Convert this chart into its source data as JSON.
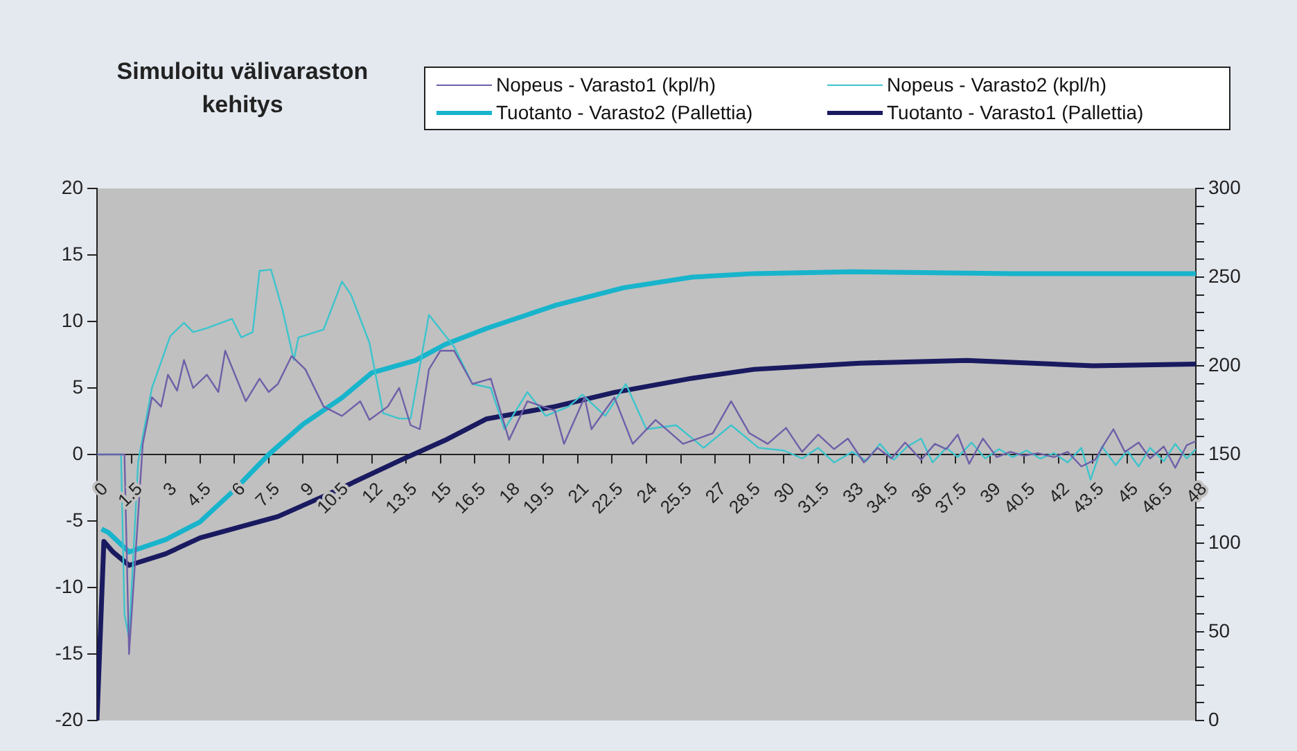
{
  "chart_data": {
    "type": "line",
    "title": "Simuloitu välivaraston kehitys",
    "legend": "top",
    "marker": "none",
    "line_style": "solid",
    "grid": false,
    "xlim": [
      0,
      48
    ],
    "xticks": [
      0,
      1.5,
      3,
      4.5,
      6,
      7.5,
      9,
      10.5,
      12,
      13.5,
      15,
      16.5,
      18,
      19.5,
      21,
      22.5,
      24,
      25.5,
      27,
      28.5,
      30,
      31.5,
      33,
      34.5,
      36,
      37.5,
      39,
      40.5,
      42,
      43.5,
      45,
      46.5,
      48
    ],
    "ylim": [
      -20,
      20
    ],
    "yticks": [
      -20,
      -15,
      -10,
      -5,
      0,
      5,
      10,
      15,
      20
    ],
    "y2lim": [
      0,
      300
    ],
    "y2ticks": [
      0,
      {
        "value": 10,
        "label": null
      },
      {
        "value": 20,
        "label": null
      },
      {
        "value": 30,
        "label": null
      },
      {
        "value": 40,
        "label": null
      },
      50,
      {
        "value": 60,
        "label": null
      },
      {
        "value": 70,
        "label": null
      },
      {
        "value": 80,
        "label": null
      },
      {
        "value": 90,
        "label": null
      },
      100,
      {
        "value": 110,
        "label": null
      },
      {
        "value": 120,
        "label": null
      },
      {
        "value": 130,
        "label": null
      },
      {
        "value": 140,
        "label": null
      },
      150,
      {
        "value": 160,
        "label": null
      },
      {
        "value": 170,
        "label": null
      },
      {
        "value": 180,
        "label": null
      },
      {
        "value": 190,
        "label": null
      },
      200,
      {
        "value": 210,
        "label": null
      },
      {
        "value": 220,
        "label": null
      },
      {
        "value": 230,
        "label": null
      },
      {
        "value": 240,
        "label": null
      },
      250,
      {
        "value": 260,
        "label": null
      },
      {
        "value": 270,
        "label": null
      },
      {
        "value": 280,
        "label": null
      },
      {
        "value": 290,
        "label": null
      },
      300
    ],
    "series": [
      {
        "name": "Nopeus - Varasto1 (kpl/h)",
        "color": "#6f5fa8",
        "x": [
          0,
          1.2,
          1.4,
          2.0,
          2.4,
          2.8,
          3.1,
          3.5,
          3.8,
          4.2,
          4.8,
          5.3,
          5.6,
          6.5,
          7.1,
          7.5,
          7.9,
          8.5,
          9.1,
          9.9,
          10.7,
          11.5,
          11.9,
          12.7,
          13.2,
          13.7,
          14.1,
          14.5,
          15,
          15.6,
          16.4,
          17.2,
          18,
          18.8,
          20,
          20.4,
          21.3,
          21.6,
          22.6,
          23.4,
          24.4,
          25.6,
          26.9,
          27.7,
          28.5,
          29.3,
          30.1,
          30.8,
          31.5,
          32.2,
          32.8,
          33.5,
          34.1,
          34.7,
          35.3,
          36,
          36.6,
          37.1,
          37.6,
          38.1,
          38.7,
          39.3,
          39.9,
          40.5,
          41.1,
          41.8,
          42.4,
          43,
          43.6,
          44,
          44.4,
          44.9,
          45.5,
          46,
          46.6,
          47.1,
          47.6,
          48
        ],
        "values": [
          0,
          0,
          -15,
          0.8,
          4.3,
          3.6,
          6,
          4.8,
          7.1,
          5,
          6,
          4.7,
          7.8,
          4,
          5.7,
          4.7,
          5.3,
          7.4,
          6.4,
          3.6,
          2.9,
          4,
          2.6,
          3.6,
          5,
          2.2,
          1.9,
          6.4,
          7.8,
          7.8,
          5.3,
          5.7,
          1.1,
          4,
          3.3,
          0.8,
          4.3,
          1.9,
          4.3,
          0.8,
          2.6,
          0.8,
          1.6,
          4,
          1.6,
          0.8,
          2,
          0.2,
          1.5,
          0.4,
          1.2,
          -0.6,
          0.5,
          -0.3,
          0.9,
          -0.4,
          0.8,
          0.4,
          1.5,
          -0.7,
          1.2,
          -0.2,
          0.2,
          -0.1,
          0.1,
          -0.2,
          0.2,
          -0.9,
          -0.4,
          0.8,
          1.9,
          0.2,
          0.9,
          -0.3,
          0.6,
          -1,
          0.7,
          1
        ]
      },
      {
        "name": "Nopeus - Varasto2 (kpl/h)",
        "color": "#3cc4cc",
        "x": [
          0,
          1.05,
          1.2,
          1.4,
          1.8,
          2.4,
          3.2,
          3.8,
          4.2,
          4.8,
          5.9,
          6.3,
          6.8,
          7.1,
          7.6,
          8.1,
          8.6,
          8.8,
          9.9,
          10.7,
          11.1,
          11.9,
          12.5,
          13.2,
          13.7,
          14.5,
          15.6,
          16.4,
          17.2,
          17.8,
          18.8,
          19.6,
          20.6,
          21.2,
          22.2,
          23.1,
          24,
          25.3,
          26.5,
          27.7,
          28.9,
          30,
          30.8,
          31.5,
          32.2,
          33,
          33.6,
          34.2,
          34.8,
          35.4,
          36,
          36.5,
          37.1,
          37.6,
          38.2,
          38.8,
          39.4,
          40,
          40.6,
          41.2,
          41.8,
          42.4,
          43,
          43.4,
          43.9,
          44.5,
          45,
          45.5,
          46,
          46.6,
          47.1,
          47.6,
          48
        ],
        "values": [
          0,
          0,
          -12,
          -13.8,
          -0.5,
          5,
          8.9,
          9.9,
          9.2,
          9.5,
          10.2,
          8.8,
          9.2,
          13.8,
          13.9,
          10.9,
          7.1,
          8.8,
          9.4,
          13,
          12,
          8.4,
          3.1,
          2.7,
          2.7,
          10.5,
          8.1,
          5.3,
          5,
          1.9,
          4.7,
          2.9,
          3.6,
          4.5,
          2.9,
          5.3,
          1.9,
          2.2,
          0.5,
          2.2,
          0.5,
          0.3,
          -0.3,
          0.5,
          -0.6,
          0.2,
          -0.5,
          0.8,
          -0.4,
          0.6,
          1.2,
          -0.6,
          0.5,
          -0.2,
          0.9,
          -0.3,
          0.4,
          -0.2,
          0.3,
          -0.3,
          0.1,
          -0.6,
          0.5,
          -1.9,
          0.6,
          -0.8,
          0.3,
          -0.9,
          0.5,
          -0.5,
          0.8,
          -0.3,
          0.4
        ]
      },
      {
        "name": "Tuotanto - Varasto2 (Pallettia)",
        "color": "#18b4cc",
        "axis": "y2",
        "x": [
          0.2,
          0.5,
          1.4,
          3,
          4.5,
          6,
          7.5,
          9,
          10.7,
          12,
          13.9,
          15.2,
          17,
          20,
          23,
          26,
          28.7,
          33,
          40,
          48
        ],
        "values": [
          108,
          106,
          95,
          102,
          112,
          130,
          150,
          167,
          182,
          196,
          203,
          212,
          221,
          234,
          244,
          250,
          252,
          253,
          252,
          252
        ]
      },
      {
        "name": "Tuotanto - Varasto1 (Pallettia)",
        "color": "#1a1a60",
        "axis": "y2",
        "x": [
          0,
          0.3,
          0.7,
          1.4,
          3,
          4.5,
          7.9,
          10,
          13.3,
          15.2,
          17,
          20,
          22.6,
          26,
          28.7,
          33.3,
          38,
          43.5,
          48
        ],
        "values": [
          0,
          101,
          95,
          87.5,
          94,
          103,
          115,
          127,
          147,
          158,
          170,
          177,
          185,
          193,
          198,
          201.5,
          203,
          200,
          201
        ]
      }
    ]
  }
}
